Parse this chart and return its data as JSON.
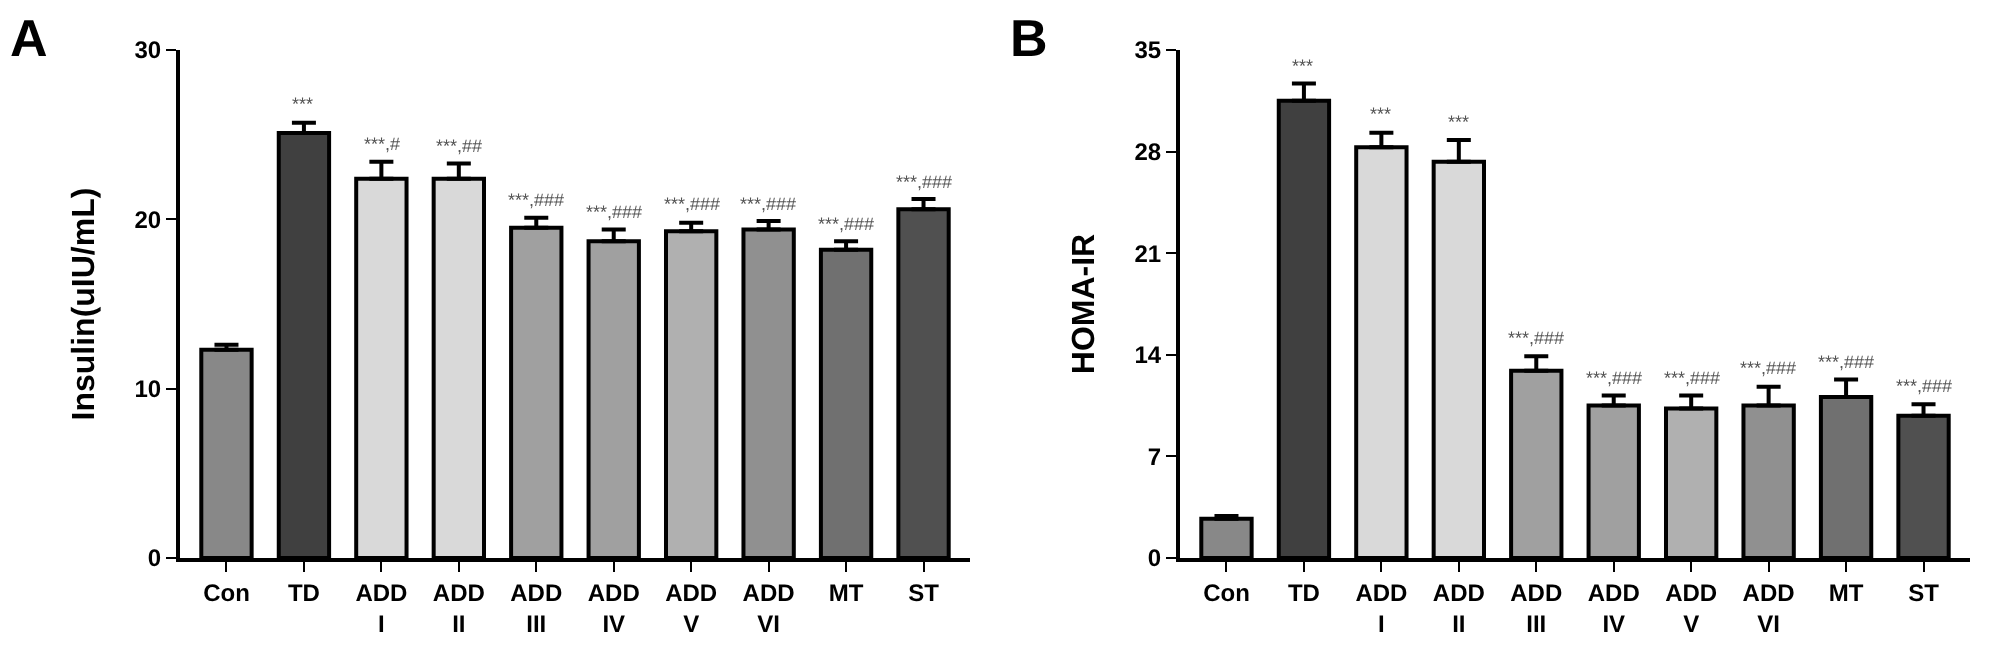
{
  "chart_data": [
    {
      "type": "bar",
      "title": "A",
      "ylabel": "Insulin(uIU/mL)",
      "categories": [
        "Con",
        "TD",
        "ADD\nI",
        "ADD\nII",
        "ADD\nIII",
        "ADD\nIV",
        "ADD\nV",
        "ADD\nVI",
        "MT",
        "ST"
      ],
      "values": [
        12.3,
        25.1,
        22.4,
        22.4,
        19.5,
        18.7,
        19.3,
        19.4,
        18.2,
        20.6
      ],
      "errors": [
        0.3,
        0.6,
        1.0,
        0.9,
        0.6,
        0.7,
        0.5,
        0.5,
        0.5,
        0.6
      ],
      "colors": [
        "#888888",
        "#404040",
        "#d9d9d9",
        "#d9d9d9",
        "#a0a0a0",
        "#a0a0a0",
        "#b0b0b0",
        "#909090",
        "#707070",
        "#505050"
      ],
      "ylim": [
        0,
        30
      ],
      "yticks": [
        0,
        10,
        20,
        30
      ],
      "grid": false,
      "annotations": [
        {
          "text": "***",
          "x": "TD",
          "y": 25.7
        },
        {
          "text": "***,#",
          "x": "ADD\nI",
          "y": 23.4
        },
        {
          "text": "***,##",
          "x": "ADD\nII",
          "y": 23.3
        },
        {
          "text": "***,###",
          "x": "ADD\nIII",
          "y": 20.1
        },
        {
          "text": "***,###",
          "x": "ADD\nIV",
          "y": 19.4
        },
        {
          "text": "***,###",
          "x": "ADD\nV",
          "y": 19.8
        },
        {
          "text": "***,###",
          "x": "ADD\nVI",
          "y": 19.9
        },
        {
          "text": "***,###",
          "x": "MT",
          "y": 18.7
        },
        {
          "text": "***,###",
          "x": "ST",
          "y": 21.2
        }
      ]
    },
    {
      "type": "bar",
      "title": "B",
      "ylabel": "HOMA-IR",
      "categories": [
        "Con",
        "TD",
        "ADD\nI",
        "ADD\nII",
        "ADD\nIII",
        "ADD\nIV",
        "ADD\nV",
        "ADD\nVI",
        "MT",
        "ST"
      ],
      "values": [
        2.7,
        31.5,
        28.3,
        27.3,
        12.9,
        10.5,
        10.3,
        10.5,
        11.1,
        9.8
      ],
      "errors": [
        0.2,
        1.2,
        1.0,
        1.5,
        1.0,
        0.7,
        0.9,
        1.3,
        1.2,
        0.8
      ],
      "colors": [
        "#888888",
        "#404040",
        "#d9d9d9",
        "#d9d9d9",
        "#a0a0a0",
        "#a0a0a0",
        "#b0b0b0",
        "#909090",
        "#707070",
        "#505050"
      ],
      "ylim": [
        0,
        35
      ],
      "yticks": [
        0,
        7,
        14,
        21,
        28,
        35
      ],
      "grid": false,
      "annotations": [
        {
          "text": "***",
          "x": "TD",
          "y": 32.7
        },
        {
          "text": "***",
          "x": "ADD\nI",
          "y": 29.3
        },
        {
          "text": "***",
          "x": "ADD\nII",
          "y": 28.8
        },
        {
          "text": "***,###",
          "x": "ADD\nIII",
          "y": 13.9
        },
        {
          "text": "***,###",
          "x": "ADD\nIV",
          "y": 11.2
        },
        {
          "text": "***,###",
          "x": "ADD\nV",
          "y": 11.2
        },
        {
          "text": "***,###",
          "x": "ADD\nVI",
          "y": 11.8
        },
        {
          "text": "***,###",
          "x": "MT",
          "y": 12.3
        },
        {
          "text": "***,###",
          "x": "ST",
          "y": 10.6
        }
      ]
    }
  ]
}
